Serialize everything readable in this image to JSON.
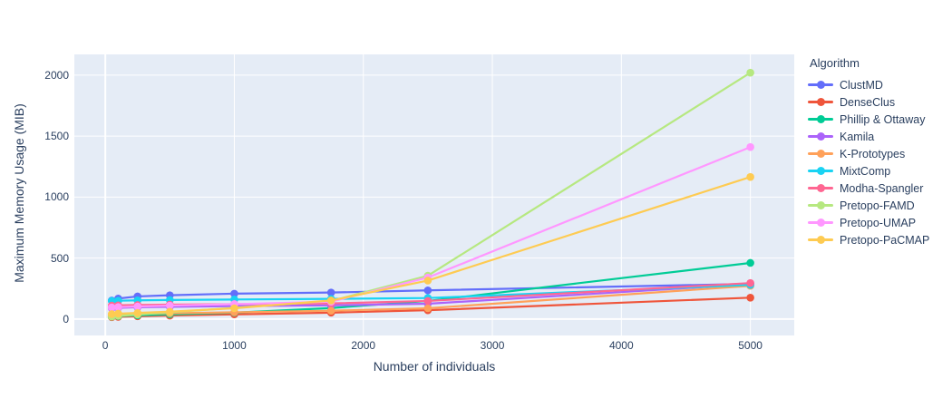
{
  "figure": {
    "plot_bgcolor": "#E5ECF6",
    "paper_bgcolor": "#ffffff",
    "grid_color": "#ffffff",
    "text_color": "#2a3f5f"
  },
  "chart_data": {
    "type": "line",
    "title": "",
    "xlabel": "Number of individuals",
    "ylabel": "Maximum Memory Usage (MIB)",
    "legend_title": "Algorithm",
    "legend_position": "right",
    "grid": true,
    "x": [
      50,
      100,
      250,
      500,
      1000,
      1750,
      2500,
      5000
    ],
    "xticks": [
      0,
      1000,
      2000,
      3000,
      4000,
      5000
    ],
    "yticks": [
      0,
      500,
      1000,
      1500,
      2000
    ],
    "xlim": [
      -240,
      5340
    ],
    "ylim": [
      -135,
      2170
    ],
    "series": [
      {
        "name": "ClustMD",
        "color": "#636EFA",
        "values": [
          152,
          168,
          185,
          195,
          208,
          217,
          235,
          288
        ]
      },
      {
        "name": "DenseClus",
        "color": "#EF553B",
        "values": [
          15,
          18,
          22,
          28,
          38,
          52,
          72,
          175
        ]
      },
      {
        "name": "Phillip & Ottaway",
        "color": "#00CC96",
        "values": [
          20,
          24,
          30,
          38,
          52,
          90,
          148,
          460
        ]
      },
      {
        "name": "Kamila",
        "color": "#AB63FA",
        "values": [
          88,
          92,
          96,
          100,
          106,
          112,
          125,
          285
        ]
      },
      {
        "name": "K-Prototypes",
        "color": "#FFA15A",
        "values": [
          35,
          38,
          42,
          47,
          55,
          68,
          88,
          272
        ]
      },
      {
        "name": "MixtComp",
        "color": "#19D3F3",
        "values": [
          148,
          150,
          153,
          156,
          160,
          165,
          172,
          280
        ]
      },
      {
        "name": "Modha-Spangler",
        "color": "#FF6692",
        "values": [
          110,
          112,
          115,
          118,
          122,
          128,
          148,
          295
        ]
      },
      {
        "name": "Pretopo-FAMD",
        "color": "#B6E880",
        "values": [
          20,
          26,
          36,
          55,
          92,
          148,
          355,
          2020
        ]
      },
      {
        "name": "Pretopo-UMAP",
        "color": "#FF97FF",
        "values": [
          95,
          98,
          103,
          110,
          122,
          142,
          340,
          1410
        ]
      },
      {
        "name": "Pretopo-PaCMAP",
        "color": "#FECB52",
        "values": [
          40,
          44,
          50,
          60,
          88,
          152,
          315,
          1165
        ]
      }
    ]
  }
}
